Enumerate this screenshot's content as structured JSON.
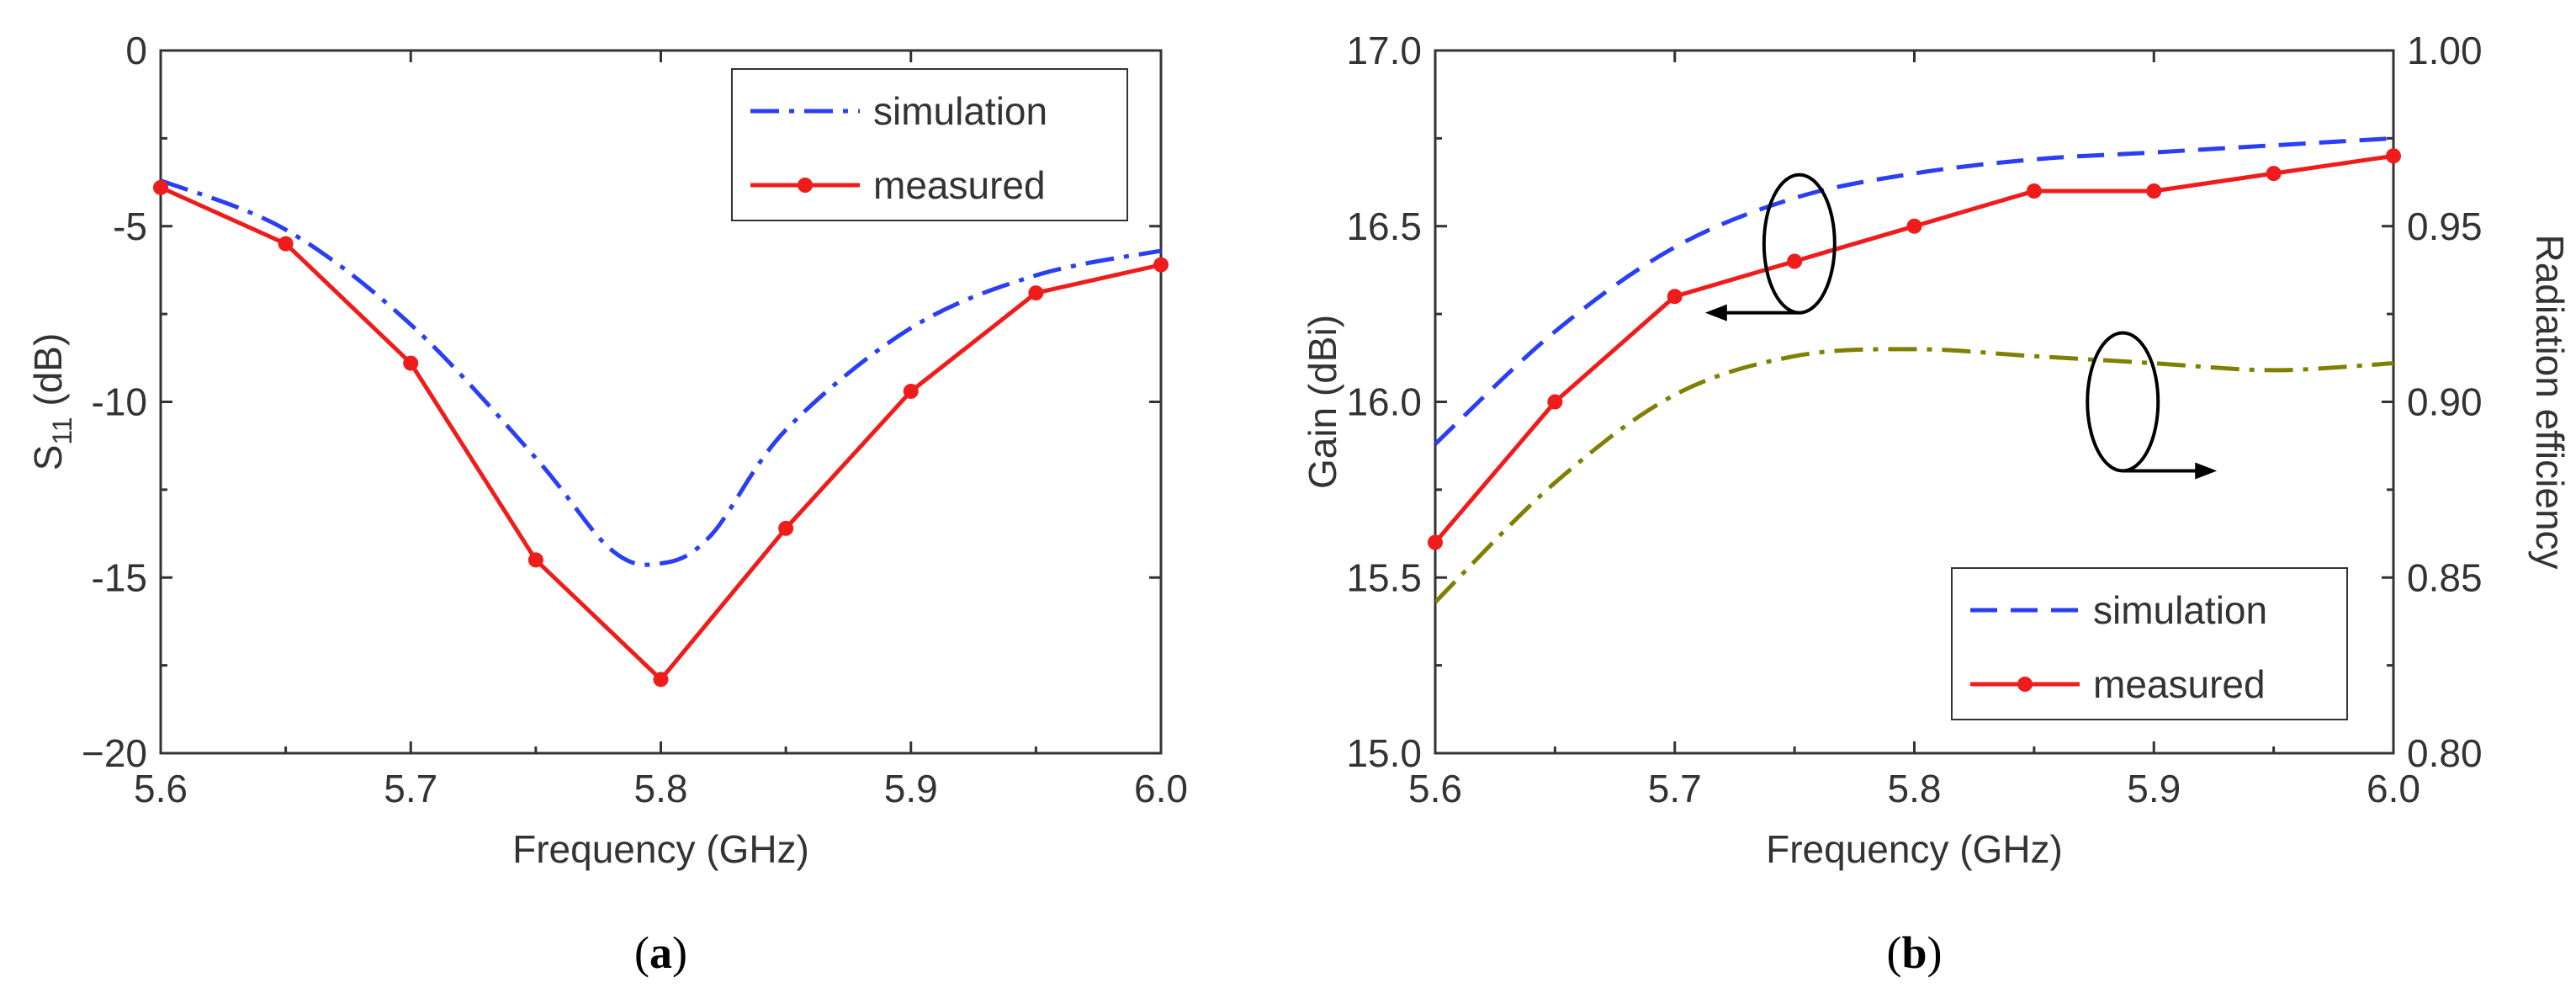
{
  "chart_data": [
    {
      "type": "line",
      "caption": "a",
      "xlabel": "Frequency (GHz)",
      "ylabel_main": "S",
      "ylabel_sub": "11",
      "ylabel_unit": " (dB)",
      "xlim": [
        5.6,
        6.0
      ],
      "ylim": [
        -20,
        0
      ],
      "xticks": [
        "5.6",
        "5.7",
        "5.8",
        "5.9",
        "6.0"
      ],
      "xtick_values": [
        5.6,
        5.7,
        5.8,
        5.9,
        6.0
      ],
      "yticks": [
        "0",
        "-5",
        "-10",
        "-15",
        "−20"
      ],
      "ytick_values": [
        0,
        -5,
        -10,
        -15,
        -20
      ],
      "legend_position": "top-right",
      "series": [
        {
          "name": "simulation",
          "style": "dash-dot",
          "color": "#2a3ff5",
          "x": [
            5.6,
            5.65,
            5.7,
            5.75,
            5.78,
            5.8,
            5.82,
            5.85,
            5.9,
            5.95,
            6.0
          ],
          "y": [
            -3.7,
            -5.1,
            -7.8,
            -11.6,
            -14.2,
            -14.6,
            -13.8,
            -10.8,
            -7.9,
            -6.4,
            -5.7
          ]
        },
        {
          "name": "measured",
          "style": "solid-dot",
          "color": "#f01c1c",
          "x": [
            5.6,
            5.65,
            5.7,
            5.75,
            5.8,
            5.85,
            5.9,
            5.95,
            6.0
          ],
          "y": [
            -3.9,
            -5.5,
            -8.9,
            -14.5,
            -17.9,
            -13.6,
            -9.7,
            -6.9,
            -6.1
          ]
        }
      ]
    },
    {
      "type": "line",
      "caption": "b",
      "xlabel": "Frequency (GHz)",
      "ylabel": "Gain (dBi)",
      "ylabel_right": "Radiation efficiency",
      "xlim": [
        5.6,
        6.0
      ],
      "ylim": [
        15.0,
        17.0
      ],
      "ylim_right": [
        0.8,
        1.0
      ],
      "xticks": [
        "5.6",
        "5.7",
        "5.8",
        "5.9",
        "6.0"
      ],
      "xtick_values": [
        5.6,
        5.7,
        5.8,
        5.9,
        6.0
      ],
      "yticks": [
        "15.0",
        "15.5",
        "16.0",
        "16.5",
        "17.0"
      ],
      "ytick_values": [
        15.0,
        15.5,
        16.0,
        16.5,
        17.0
      ],
      "yticks_right": [
        "0.80",
        "0.85",
        "0.90",
        "0.95",
        "1.00"
      ],
      "ytick_values_right": [
        0.8,
        0.85,
        0.9,
        0.95,
        1.0
      ],
      "legend_position": "bottom-right",
      "series": [
        {
          "name": "simulation",
          "style": "dash",
          "color": "#2a3ff5",
          "axis": "left",
          "x": [
            5.6,
            5.65,
            5.7,
            5.75,
            5.8,
            5.85,
            5.9,
            5.95,
            6.0
          ],
          "y": [
            15.88,
            16.2,
            16.44,
            16.58,
            16.65,
            16.69,
            16.71,
            16.73,
            16.75
          ]
        },
        {
          "name": "measured",
          "style": "solid-dot",
          "color": "#f01c1c",
          "axis": "left",
          "x": [
            5.6,
            5.65,
            5.7,
            5.75,
            5.8,
            5.85,
            5.9,
            5.95,
            6.0
          ],
          "y": [
            15.6,
            16.0,
            16.3,
            16.4,
            16.5,
            16.6,
            16.6,
            16.65,
            16.7
          ]
        },
        {
          "name": "radiation efficiency",
          "style": "dash-dot",
          "color": "#808000",
          "axis": "right",
          "legend": false,
          "x": [
            5.6,
            5.65,
            5.7,
            5.75,
            5.8,
            5.85,
            5.9,
            5.95,
            6.0
          ],
          "y": [
            0.843,
            0.877,
            0.902,
            0.913,
            0.915,
            0.913,
            0.911,
            0.909,
            0.911
          ]
        }
      ],
      "annotations": [
        {
          "type": "ellipse-arrow",
          "x": 5.752,
          "y": 16.45,
          "points_to": "left",
          "axis": "left"
        },
        {
          "type": "ellipse-arrow",
          "x": 5.887,
          "y": 16.0,
          "points_to": "right",
          "axis": "left"
        }
      ]
    }
  ]
}
